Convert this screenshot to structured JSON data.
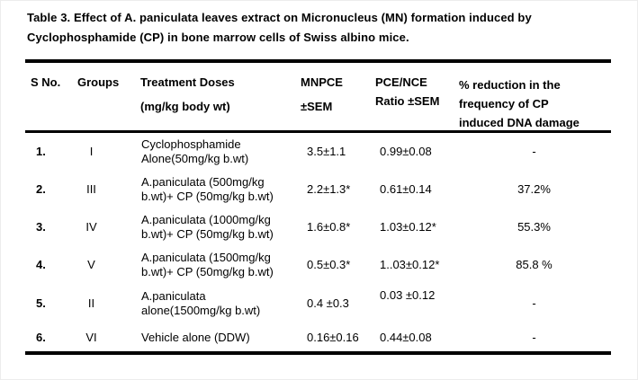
{
  "title": {
    "line1": "Table 3. Effect of A. paniculata leaves extract on Micronucleus (MN) formation induced by",
    "line2": "Cyclophosphamide (CP) in bone marrow cells of Swiss albino mice."
  },
  "table": {
    "header": {
      "sno": "S No.",
      "groups": "Groups",
      "treatment_line1": "Treatment Doses",
      "treatment_line2": "(mg/kg body wt)",
      "mnpce_line1": "MNPCE",
      "mnpce_line2": "±SEM",
      "pce_line1": "PCE/NCE",
      "pce_line2": "Ratio ±SEM",
      "reduction_line1": "% reduction in the",
      "reduction_line2": "frequency of CP",
      "reduction_line3": "induced DNA damage"
    },
    "rows": [
      {
        "sno": "1.",
        "group": "I",
        "treatment_lines": [
          "Cyclophosphamide",
          "Alone(50mg/kg b.wt)"
        ],
        "mnpce": "3.5±1.1",
        "pce_nce": "0.99±0.08",
        "reduction": "-"
      },
      {
        "sno": "2.",
        "group": "III",
        "treatment_lines": [
          "A.paniculata (500mg/kg",
          "b.wt)+ CP (50mg/kg b.wt)"
        ],
        "mnpce": "2.2±1.3*",
        "pce_nce": "0.61±0.14",
        "reduction": "37.2%"
      },
      {
        "sno": "3.",
        "group": "IV",
        "treatment_lines": [
          "A.paniculata (1000mg/kg",
          "b.wt)+ CP (50mg/kg b.wt)"
        ],
        "mnpce": "1.6±0.8*",
        "pce_nce": "1.03±0.12*",
        "reduction": "55.3%"
      },
      {
        "sno": "4.",
        "group": "V",
        "treatment_lines": [
          "A.paniculata (1500mg/kg",
          "b.wt)+ CP (50mg/kg b.wt)"
        ],
        "mnpce": "0.5±0.3*",
        "pce_nce": "1..03±0.12*",
        "reduction": "85.8 %"
      },
      {
        "sno": "5.",
        "group": "II",
        "treatment_lines": [
          "A.paniculata",
          "alone(1500mg/kg b.wt)"
        ],
        "mnpce": "0.4 ±0.3",
        "pce_nce": "0.03 ±0.12",
        "reduction": "-"
      },
      {
        "sno": "6.",
        "group": "VI",
        "treatment_lines": [
          "Vehicle alone (DDW)"
        ],
        "mnpce": "0.16±0.16",
        "pce_nce": "0.44±0.08",
        "reduction": "-"
      }
    ]
  }
}
